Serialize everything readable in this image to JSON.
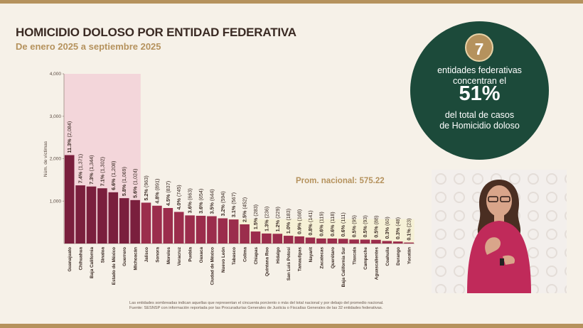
{
  "header": {
    "title": "HOMICIDIO DOLOSO POR ENTIDAD FEDERATIVA",
    "subtitle": "De enero 2025 a septiembre 2025"
  },
  "callout": {
    "number": "7",
    "line1": "entidades federativas\nconcentran el",
    "percent": "51%",
    "line2": "del total de casos\nde Homicidio doloso"
  },
  "footnote": {
    "line1": "Las entidades sombreadas indican aquellas que representan el cincuenta porciento o más del total nacional y por debajo del promedio nacional.",
    "line2": "Fuente: SESNSP con información reportada por las Procuradurías Generales de Justicia o Fiscalías Generales de las 32 entidades federativas."
  },
  "colors": {
    "dark_bar": "#7a1f3d",
    "light_bar": "#9b2d4c",
    "highlight_band": "#f3d6da",
    "average_band": "#f6f1d6",
    "gold": "#b5925d",
    "green": "#1c4a3a"
  },
  "chart_data": {
    "type": "bar",
    "ylabel": "Núm. de víctimas",
    "ylim": [
      0,
      4000
    ],
    "yticks": [
      "1,000",
      "2,000",
      "3,000",
      "4,000"
    ],
    "average_label": "Prom. nacional: 575.22",
    "average_value": 575.22,
    "highlighted_count": 7,
    "categories": [
      "Guanajuato",
      "Chihuahua",
      "Baja California",
      "Sinaloa",
      "Estado de México",
      "Guerrero",
      "Michoacán",
      "Jalisco",
      "Sonora",
      "Morelos",
      "Veracruz",
      "Puebla",
      "Oaxaca",
      "Ciudad de México",
      "Nuevo León",
      "Tabasco",
      "Colima",
      "Chiapas",
      "Quintana Roo",
      "Hidalgo",
      "San Luis Potosí",
      "Tamaulipas",
      "Nayarit",
      "Zacatecas",
      "Querétaro",
      "Baja California Sur",
      "Tlaxcala",
      "Campeche",
      "Aguascalientes",
      "Coahuila",
      "Durango",
      "Yucatán"
    ],
    "values": [
      2084,
      1371,
      1344,
      1302,
      1208,
      1069,
      1024,
      963,
      891,
      837,
      745,
      663,
      654,
      644,
      594,
      567,
      452,
      283,
      236,
      229,
      183,
      168,
      141,
      119,
      118,
      111,
      95,
      93,
      88,
      60,
      48,
      23
    ],
    "labels": [
      "11.3% (2,084)",
      "7.4% (1,371)",
      "7.3% (1,344)",
      "7.1% (1,302)",
      "6.6% (1,208)",
      "5.8% (1,069)",
      "5.6% (1,024)",
      "5.2% (963)",
      "4.8% (891)",
      "4.5% (837)",
      "4.0% (745)",
      "3.6% (663)",
      "3.6% (654)",
      "3.5% (644)",
      "3.2% (594)",
      "3.1% (567)",
      "2.5% (452)",
      "1.5% (283)",
      "1.3% (236)",
      "1.2% (229)",
      "1.0% (183)",
      "0.9% (168)",
      "0.8% (141)",
      "0.6% (119)",
      "0.6% (118)",
      "0.6% (111)",
      "0.5% (95)",
      "0.5% (93)",
      "0.5% (88)",
      "0.3% (60)",
      "0.3% (48)",
      "0.1% (23)"
    ]
  }
}
